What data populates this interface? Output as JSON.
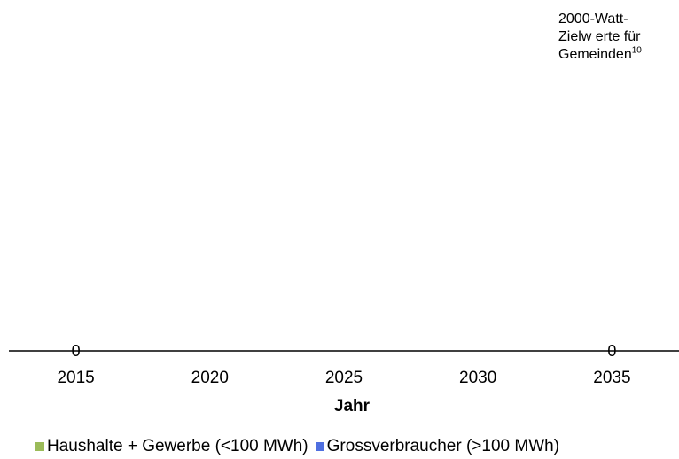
{
  "chart_data": {
    "type": "bar",
    "title": "",
    "xlabel": "Jahr",
    "ylabel": "",
    "x": [
      "2015",
      "2020",
      "2025",
      "2030",
      "2035"
    ],
    "data_labels": [
      {
        "x": "2015",
        "text": "0"
      },
      {
        "x": "2035",
        "text": "0"
      }
    ],
    "series": [
      {
        "name": "Haushalte + Gewerbe (<100 MWh)",
        "color": "#9BBB59",
        "values": [
          0,
          null,
          null,
          null,
          0
        ]
      },
      {
        "name": "Grossverbraucher (>100 MWh)",
        "color": "#4F6FE0",
        "values": [
          0,
          null,
          null,
          null,
          0
        ]
      }
    ],
    "annotation": {
      "lines": [
        "2000-Watt-",
        "Zielw erte für",
        "Gemeinden"
      ],
      "superscript": "10"
    },
    "grid": false,
    "legend_position": "bottom"
  }
}
